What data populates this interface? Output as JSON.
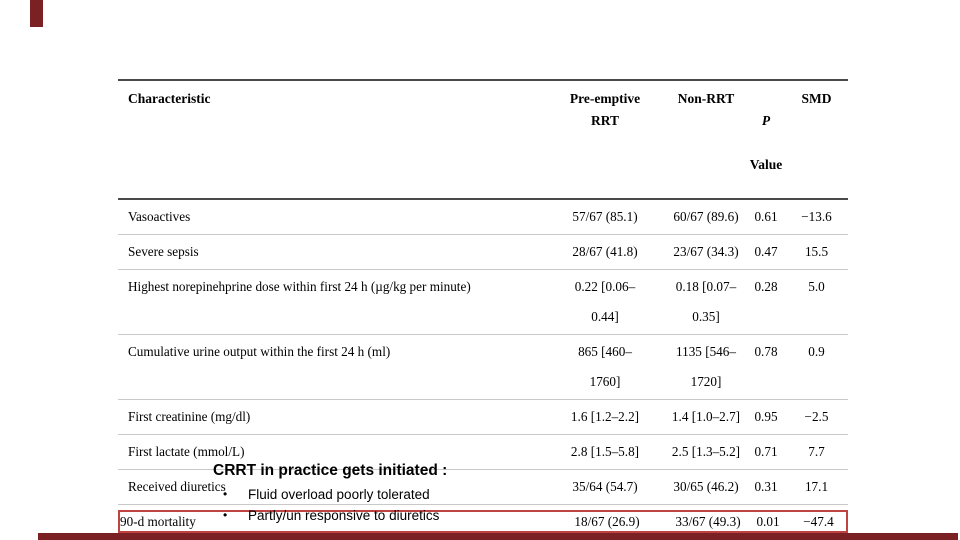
{
  "colors": {
    "background": "#ffffff",
    "text": "#000000",
    "highlight_box": "#bf4340",
    "accent_maroon": "#7b2023",
    "table_rule_dark": "#4a4a4a",
    "table_rule_light": "#c9c9c9"
  },
  "table": {
    "col_characteristic": "Characteristic",
    "col_preemptive": "Pre-emptive\nRRT",
    "col_nonrrt": "Non-RRT",
    "col_p_line1": "P",
    "col_p_line2": "Value",
    "col_smd": "SMD",
    "rows": [
      {
        "characteristic": "Vasoactives",
        "preemptive": "57/67 (85.1)",
        "nonrrt": "60/67 (89.6)",
        "p": "0.61",
        "smd": "−13.6",
        "highlighted": false
      },
      {
        "characteristic": "Severe sepsis",
        "preemptive": "28/67 (41.8)",
        "nonrrt": "23/67 (34.3)",
        "p": "0.47",
        "smd": "15.5",
        "highlighted": false
      },
      {
        "characteristic": "Highest norepinehprine dose within first 24 h (µg/kg per minute)",
        "preemptive": "0.22 [0.06–\n0.44]",
        "nonrrt": "0.18 [0.07–\n0.35]",
        "p": "0.28",
        "smd": "5.0",
        "highlighted": false
      },
      {
        "characteristic": "Cumulative urine output within the first 24 h (ml)",
        "preemptive": "865 [460–\n1760]",
        "nonrrt": "1135 [546–\n1720]",
        "p": "0.78",
        "smd": "0.9",
        "highlighted": false
      },
      {
        "characteristic": "First creatinine (mg/dl)",
        "preemptive": "1.6 [1.2–2.2]",
        "nonrrt": "1.4 [1.0–2.7]",
        "p": "0.95",
        "smd": "−2.5",
        "highlighted": false
      },
      {
        "characteristic": "First lactate (mmol/L)",
        "preemptive": "2.8 [1.5–5.8]",
        "nonrrt": "2.5 [1.3–5.2]",
        "p": "0.71",
        "smd": "7.7",
        "highlighted": false
      },
      {
        "characteristic": "Received diuretics",
        "preemptive": "35/64 (54.7)",
        "nonrrt": "30/65 (46.2)",
        "p": "0.31",
        "smd": "17.1",
        "highlighted": false
      },
      {
        "characteristic": "90-d mortality",
        "preemptive": "18/67 (26.9)",
        "nonrrt": "33/67 (49.3)",
        "p": "0.01",
        "smd": "−47.4",
        "highlighted": true
      }
    ]
  },
  "callout": {
    "title": "CRRT in practice gets initiated :",
    "bullet_glyph": "•",
    "bullets": [
      "Fluid overload poorly tolerated",
      "Partly/un responsive to diuretics"
    ]
  }
}
